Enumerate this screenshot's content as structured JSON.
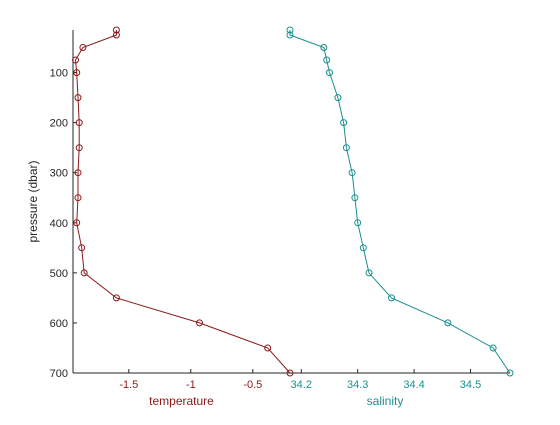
{
  "chart_data": {
    "type": "line",
    "y_axis": {
      "label": "pressure (dbar)",
      "range": [
        15,
        700
      ],
      "reversed": true,
      "ticks": [
        100,
        200,
        300,
        400,
        500,
        600,
        700
      ],
      "tick_labels": [
        "100",
        "200",
        "300",
        "400",
        "500",
        "600",
        "700"
      ]
    },
    "panels": [
      {
        "name": "temperature",
        "xlabel": "temperature",
        "xlim": [
          -1.95,
          -0.2
        ],
        "ticks": [
          -1.5,
          -1,
          -0.5
        ],
        "tick_labels": [
          "-1.5",
          "-1",
          "-0.5"
        ],
        "color": "#8b1a1a",
        "marker": "circle",
        "series": [
          {
            "x": [
              -1.6,
              -1.6,
              -1.87,
              -1.93,
              -1.92,
              -1.91,
              -1.9,
              -1.9,
              -1.91,
              -1.91,
              -1.92,
              -1.88,
              -1.86,
              -1.6,
              -0.93,
              -0.38,
              -0.2
            ],
            "y": [
              15,
              25,
              50,
              75,
              100,
              150,
              200,
              250,
              300,
              350,
              400,
              450,
              500,
              550,
              600,
              650,
              700
            ]
          }
        ]
      },
      {
        "name": "salinity",
        "xlabel": "salinity",
        "xlim": [
          34.18,
          34.57
        ],
        "ticks": [
          34.2,
          34.3,
          34.4,
          34.5
        ],
        "tick_labels": [
          "34.2",
          "34.3",
          "34.4",
          "34.5"
        ],
        "color": "#1a8f8f",
        "marker": "circle",
        "series": [
          {
            "x": [
              34.18,
              34.18,
              34.24,
              34.245,
              34.25,
              34.265,
              34.275,
              34.28,
              34.29,
              34.295,
              34.3,
              34.31,
              34.32,
              34.36,
              34.46,
              34.54,
              34.57
            ],
            "y": [
              15,
              25,
              50,
              75,
              100,
              150,
              200,
              250,
              300,
              350,
              400,
              450,
              500,
              550,
              600,
              650,
              700
            ]
          }
        ]
      }
    ],
    "colors": {
      "axis": "#262626",
      "temperature_tick_label": "#8b1a1a",
      "salinity_tick_label": "#1a8f8f"
    }
  }
}
